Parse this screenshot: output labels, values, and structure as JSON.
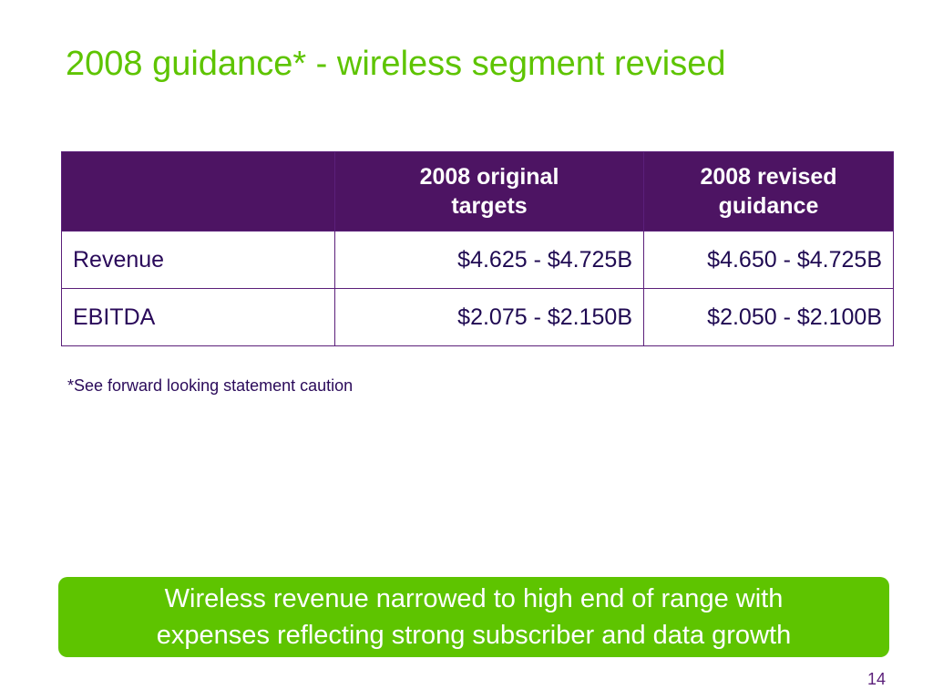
{
  "slide": {
    "title": "2008 guidance* - wireless segment revised",
    "page_number": "14"
  },
  "table": {
    "headers": {
      "blank": "",
      "original_line1": "2008 original",
      "original_line2": "targets",
      "revised_line1": "2008 revised",
      "revised_line2": "guidance"
    },
    "rows": [
      {
        "label": "Revenue",
        "original": "$4.625 - $4.725B",
        "revised": "$4.650 - $4.725B"
      },
      {
        "label": "EBITDA",
        "original": "$2.075 - $2.150B",
        "revised": "$2.050 - $2.100B"
      }
    ]
  },
  "footnote": "*See forward looking statement caution",
  "callout": {
    "line1": "Wireless revenue narrowed to high end of range with",
    "line2": "expenses reflecting strong subscriber and data growth"
  },
  "colors": {
    "accent_green": "#5ec400",
    "header_purple": "#4d1463",
    "text_purple": "#2a0a5a"
  }
}
